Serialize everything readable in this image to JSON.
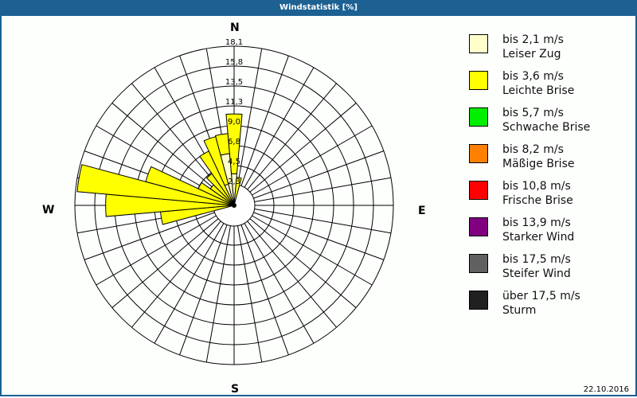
{
  "title": "Windstatistik [%]",
  "compass": {
    "n": "N",
    "e": "E",
    "s": "S",
    "w": "W"
  },
  "date": "22.10.2016",
  "legend": [
    {
      "range": "bis 2,1 m/s",
      "name": "Leiser Zug",
      "color": "#ffffcc"
    },
    {
      "range": "bis 3,6 m/s",
      "name": "Leichte Brise",
      "color": "#ffff00"
    },
    {
      "range": "bis 5,7 m/s",
      "name": "Schwache Brise",
      "color": "#00ee00"
    },
    {
      "range": "bis 8,2 m/s",
      "name": "Mäßige Brise",
      "color": "#ff8000"
    },
    {
      "range": "bis 10,8 m/s",
      "name": "Frische Brise",
      "color": "#ff0000"
    },
    {
      "range": "bis 13,9 m/s",
      "name": "Starker Wind",
      "color": "#800080"
    },
    {
      "range": "bis 17,5 m/s",
      "name": "Steifer Wind",
      "color": "#606060"
    },
    {
      "range": "über 17,5 m/s",
      "name": "Sturm",
      "color": "#202020"
    }
  ],
  "chart_data": {
    "type": "polar-bar (wind rose)",
    "title": "Windstatistik [%]",
    "radial_ticks": [
      "2,3",
      "4,5",
      "6,8",
      "9,0",
      "11,3",
      "13,5",
      "15,8",
      "18,1"
    ],
    "rmax": 18.1,
    "sector_width_deg": 10,
    "directions_deg": [
      0,
      10,
      260,
      270,
      280,
      290,
      300,
      310,
      320,
      330,
      340,
      350
    ],
    "series": [
      {
        "name": "Leiser Zug (bis 2,1 m/s)",
        "color": "#ffffcc",
        "values": [
          3.6,
          0,
          0,
          0,
          0,
          0,
          0,
          0,
          0,
          0,
          2.5,
          5.9
        ]
      },
      {
        "name": "Leichte Brise (bis 3,6 m/s)",
        "color": "#ffff00",
        "values": [
          6.8,
          3.2,
          8.4,
          14.6,
          17.9,
          10.4,
          4.5,
          3.3,
          4.4,
          6.8,
          5.6,
          2.3
        ]
      }
    ],
    "totals": [
      10.4,
      3.2,
      8.4,
      14.6,
      17.9,
      10.4,
      4.5,
      3.3,
      4.4,
      6.8,
      8.1,
      8.2
    ],
    "legend_position": "right"
  }
}
